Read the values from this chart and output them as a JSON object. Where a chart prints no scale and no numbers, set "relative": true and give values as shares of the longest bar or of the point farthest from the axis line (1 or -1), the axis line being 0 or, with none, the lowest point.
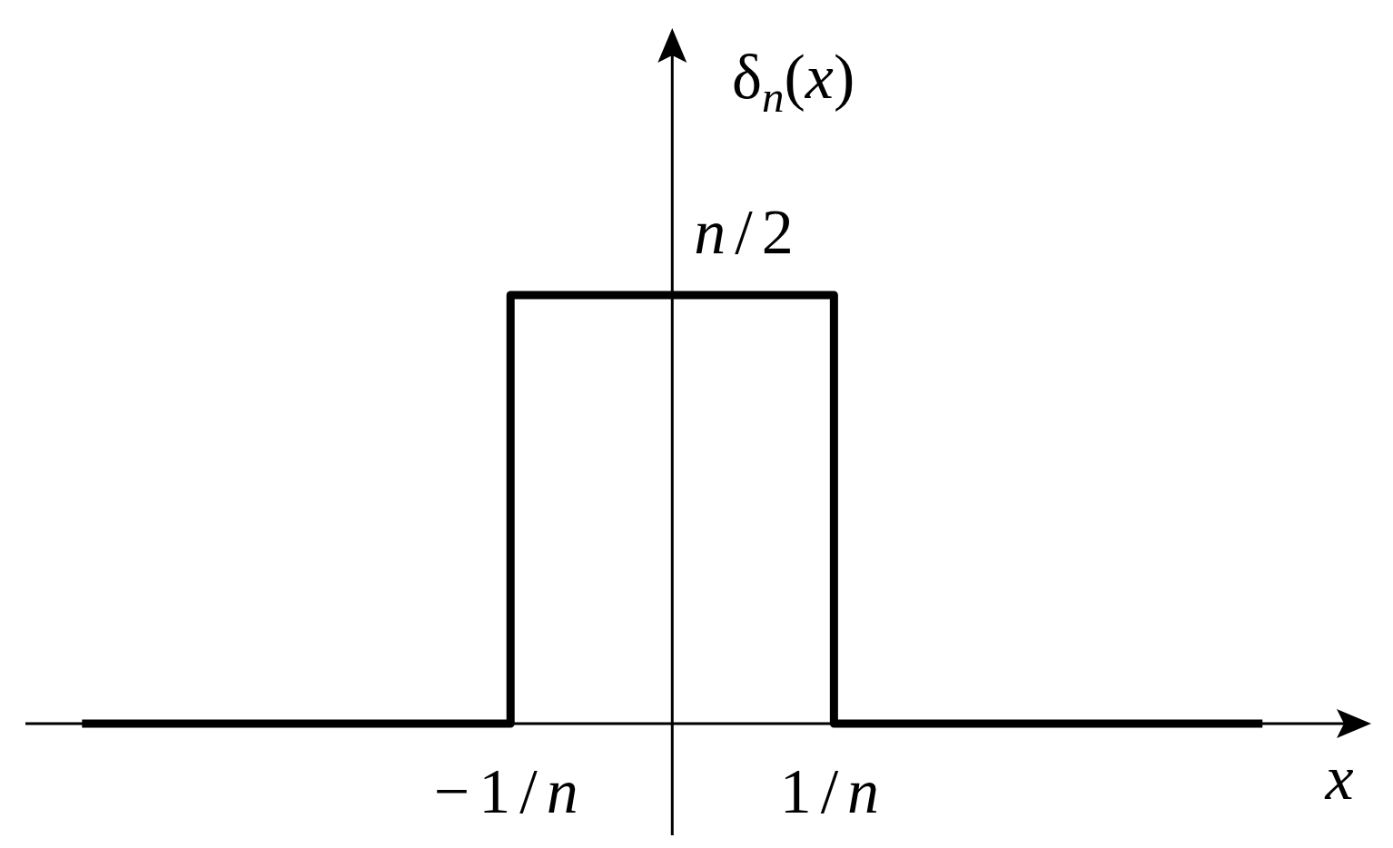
{
  "chart_data": {
    "type": "step",
    "xlabel": "x",
    "ylabel": "δ$_{n}$(x)",
    "x": [
      -3.65,
      -1,
      1,
      3.65
    ],
    "values": [
      0,
      1,
      0,
      0
    ],
    "color": "#000000",
    "relative": true,
    "xlim": [
      -4,
      4.3
    ],
    "xticks": [
      {
        "value": -1,
        "label": "−1/n"
      },
      {
        "value": 1,
        "label": "1/n"
      }
    ],
    "annotations": [
      {
        "text": "n/2",
        "x": 0,
        "y": 1
      }
    ]
  }
}
